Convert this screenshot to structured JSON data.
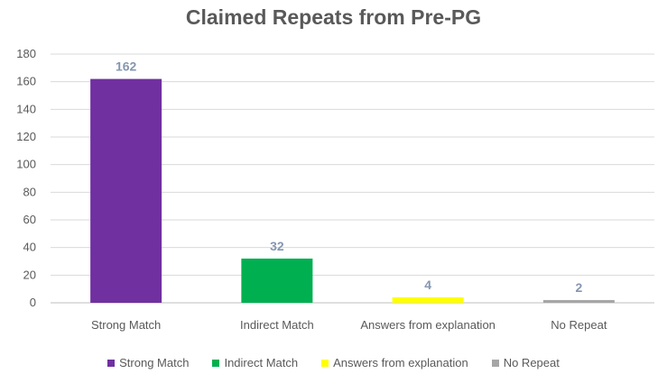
{
  "chart_data": {
    "type": "bar",
    "title": "Claimed Repeats from Pre-PG",
    "categories": [
      "Strong Match",
      "Indirect Match",
      "Answers from explanation",
      "No Repeat"
    ],
    "values": [
      162,
      32,
      4,
      2
    ],
    "colors": [
      "#7030a0",
      "#00b050",
      "#ffff00",
      "#a6a6a6"
    ],
    "ylim": [
      0,
      180
    ],
    "yticks": [
      0,
      20,
      40,
      60,
      80,
      100,
      120,
      140,
      160,
      180
    ],
    "grid": true,
    "legend": {
      "position": "bottom",
      "entries": [
        "Strong Match",
        "Indirect Match",
        "Answers from explanation",
        "No Repeat"
      ]
    }
  }
}
